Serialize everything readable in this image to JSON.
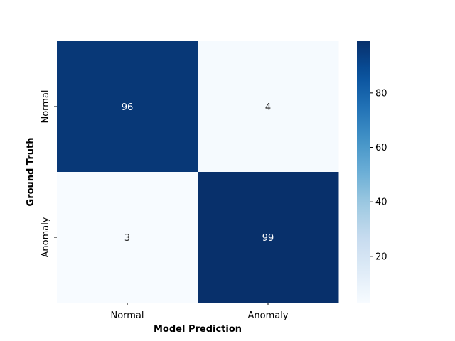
{
  "chart_data": {
    "type": "heatmap",
    "title": "",
    "xlabel": "Model Prediction",
    "ylabel": "Ground Truth",
    "x_categories": [
      "Normal",
      "Anomaly"
    ],
    "y_categories": [
      "Normal",
      "Anomaly"
    ],
    "values": [
      [
        96,
        4
      ],
      [
        3,
        99
      ]
    ],
    "colormap": "Blues",
    "color_low": "#f7fbff",
    "color_high": "#08306b",
    "colorbar": {
      "min": 3,
      "max": 99,
      "ticks": [
        20,
        40,
        60,
        80
      ]
    }
  }
}
